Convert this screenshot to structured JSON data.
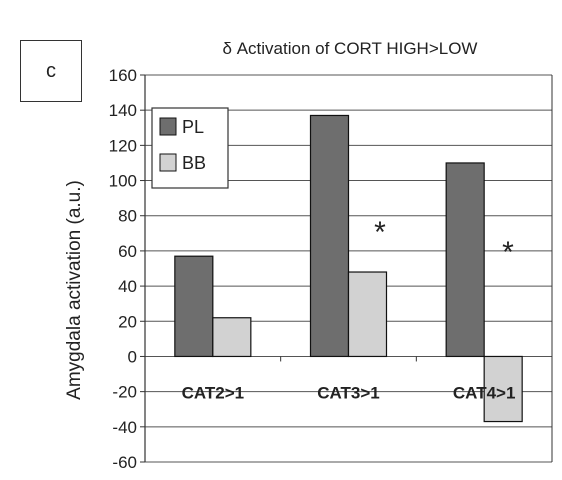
{
  "panel_label": "c",
  "chart_data": {
    "type": "bar",
    "title": "δ Activation of CORT HIGH>LOW",
    "xlabel": "",
    "ylabel": "Amygdala activation (a.u.)",
    "categories": [
      "CAT2>1",
      "CAT3>1",
      "CAT4>1"
    ],
    "series": [
      {
        "name": "PL",
        "values": [
          57,
          137,
          110
        ],
        "color": "#6e6e6e"
      },
      {
        "name": "BB",
        "values": [
          22,
          48,
          -37
        ],
        "color": "#d2d2d2"
      }
    ],
    "ylim": [
      -60,
      160
    ],
    "yticks": [
      -60,
      -40,
      -20,
      0,
      20,
      40,
      60,
      80,
      100,
      120,
      140,
      160
    ],
    "grid": true,
    "legend_position": "top-left",
    "annotations": [
      "*",
      "*"
    ]
  }
}
